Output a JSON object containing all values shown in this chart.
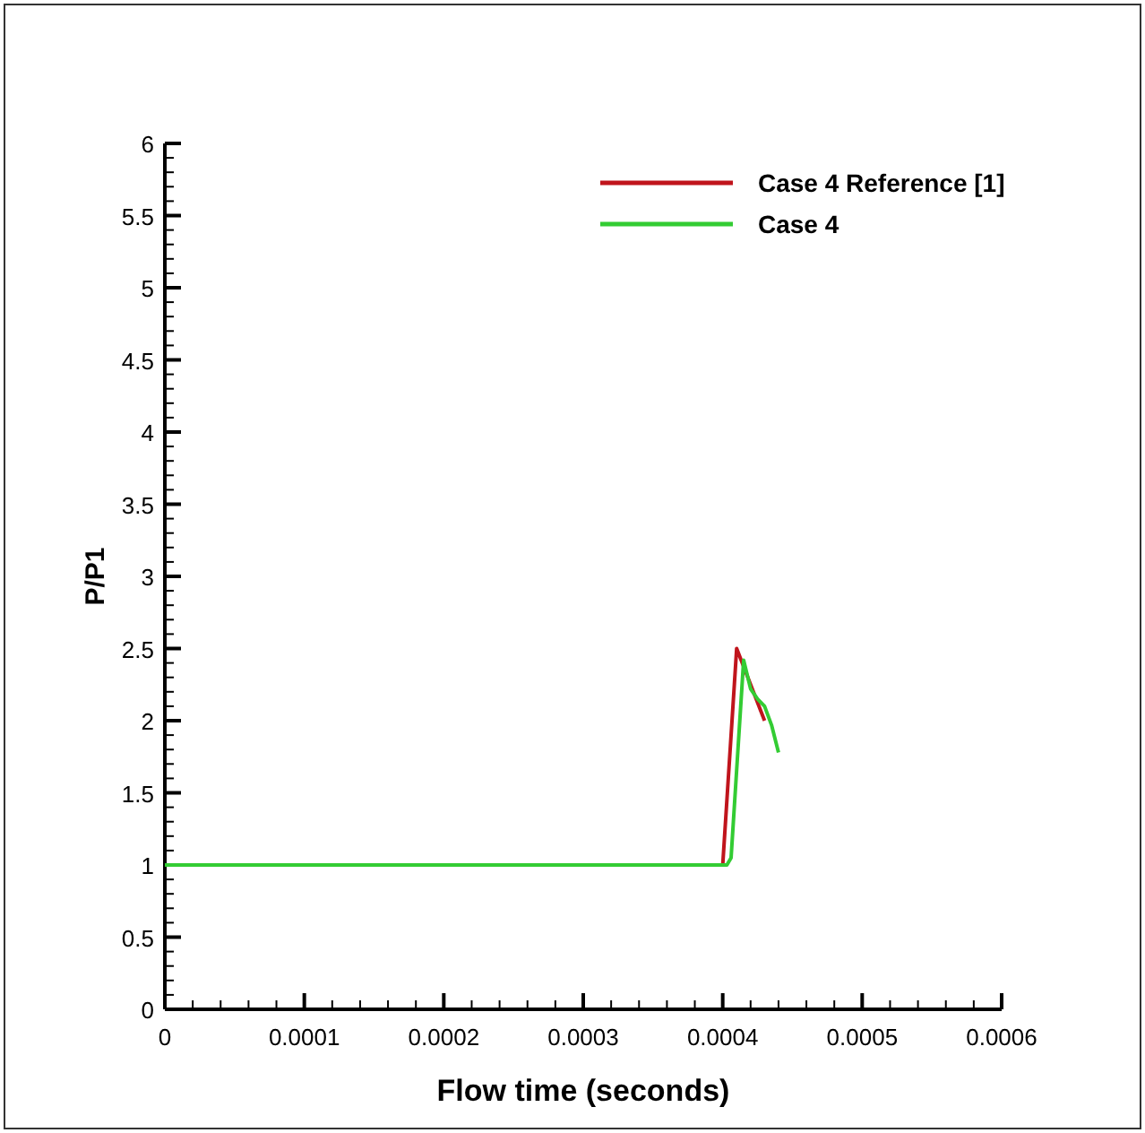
{
  "chart_data": {
    "type": "line",
    "xlabel": "Flow time (seconds)",
    "ylabel": "P/P1",
    "xlim": [
      0,
      0.0006
    ],
    "ylim": [
      0,
      6
    ],
    "xticks": [
      0,
      {
        "value": 2e-05,
        "label": null
      },
      {
        "value": 4e-05,
        "label": null
      },
      {
        "value": 6e-05,
        "label": null
      },
      {
        "value": 8e-05,
        "label": null
      },
      0.0001,
      {
        "value": 0.00012,
        "label": null
      },
      {
        "value": 0.00014,
        "label": null
      },
      {
        "value": 0.00016,
        "label": null
      },
      {
        "value": 0.00018,
        "label": null
      },
      0.0002,
      {
        "value": 0.00022,
        "label": null
      },
      {
        "value": 0.00024,
        "label": null
      },
      {
        "value": 0.00026,
        "label": null
      },
      {
        "value": 0.00028,
        "label": null
      },
      0.0003,
      {
        "value": 0.00032,
        "label": null
      },
      {
        "value": 0.00034,
        "label": null
      },
      {
        "value": 0.00036,
        "label": null
      },
      {
        "value": 0.00038,
        "label": null
      },
      0.0004,
      {
        "value": 0.00042,
        "label": null
      },
      {
        "value": 0.00044,
        "label": null
      },
      {
        "value": 0.00046,
        "label": null
      },
      {
        "value": 0.00048,
        "label": null
      },
      0.0005,
      {
        "value": 0.00052,
        "label": null
      },
      {
        "value": 0.00054,
        "label": null
      },
      {
        "value": 0.00056,
        "label": null
      },
      {
        "value": 0.00058,
        "label": null
      },
      0.0006
    ],
    "yticks": [
      0,
      {
        "value": 0.1,
        "label": null
      },
      {
        "value": 0.2,
        "label": null
      },
      {
        "value": 0.3,
        "label": null
      },
      {
        "value": 0.4,
        "label": null
      },
      0.5,
      {
        "value": 0.6,
        "label": null
      },
      {
        "value": 0.7,
        "label": null
      },
      {
        "value": 0.8,
        "label": null
      },
      {
        "value": 0.9,
        "label": null
      },
      1,
      {
        "value": 1.1,
        "label": null
      },
      {
        "value": 1.2,
        "label": null
      },
      {
        "value": 1.3,
        "label": null
      },
      {
        "value": 1.4,
        "label": null
      },
      1.5,
      {
        "value": 1.6,
        "label": null
      },
      {
        "value": 1.7,
        "label": null
      },
      {
        "value": 1.8,
        "label": null
      },
      {
        "value": 1.9,
        "label": null
      },
      2,
      {
        "value": 2.1,
        "label": null
      },
      {
        "value": 2.2,
        "label": null
      },
      {
        "value": 2.3,
        "label": null
      },
      {
        "value": 2.4,
        "label": null
      },
      2.5,
      {
        "value": 2.6,
        "label": null
      },
      {
        "value": 2.7,
        "label": null
      },
      {
        "value": 2.8,
        "label": null
      },
      {
        "value": 2.9,
        "label": null
      },
      3,
      {
        "value": 3.1,
        "label": null
      },
      {
        "value": 3.2,
        "label": null
      },
      {
        "value": 3.3,
        "label": null
      },
      {
        "value": 3.4,
        "label": null
      },
      3.5,
      {
        "value": 3.6,
        "label": null
      },
      {
        "value": 3.7,
        "label": null
      },
      {
        "value": 3.8,
        "label": null
      },
      {
        "value": 3.9,
        "label": null
      },
      4,
      {
        "value": 4.1,
        "label": null
      },
      {
        "value": 4.2,
        "label": null
      },
      {
        "value": 4.3,
        "label": null
      },
      {
        "value": 4.4,
        "label": null
      },
      4.5,
      {
        "value": 4.6,
        "label": null
      },
      {
        "value": 4.7,
        "label": null
      },
      {
        "value": 4.8,
        "label": null
      },
      {
        "value": 4.9,
        "label": null
      },
      5,
      {
        "value": 5.1,
        "label": null
      },
      {
        "value": 5.2,
        "label": null
      },
      {
        "value": 5.3,
        "label": null
      },
      {
        "value": 5.4,
        "label": null
      },
      5.5,
      {
        "value": 5.6,
        "label": null
      },
      {
        "value": 5.7,
        "label": null
      },
      {
        "value": 5.8,
        "label": null
      },
      {
        "value": 5.9,
        "label": null
      },
      6
    ],
    "grid": false,
    "legend": "top right",
    "line_style": "solid",
    "marker": "none",
    "series": [
      {
        "name": "Case 4 Reference [1]",
        "color": "#c0141c",
        "x": [
          0.0004,
          0.00041,
          0.00042,
          0.00043
        ],
        "values": [
          1,
          2.5,
          2.25,
          2
        ]
      },
      {
        "name": "Case 4",
        "color": "#33cc33",
        "x": [
          0,
          0.0001,
          0.0002,
          0.0003,
          0.0004,
          0.000403,
          0.000406,
          0.000415,
          0.00042,
          0.000425,
          0.00043,
          0.000435,
          0.00044
        ],
        "values": [
          1,
          1,
          1,
          1,
          1,
          1,
          1.05,
          2.42,
          2.22,
          2.15,
          2.1,
          1.97,
          1.78
        ]
      }
    ]
  }
}
